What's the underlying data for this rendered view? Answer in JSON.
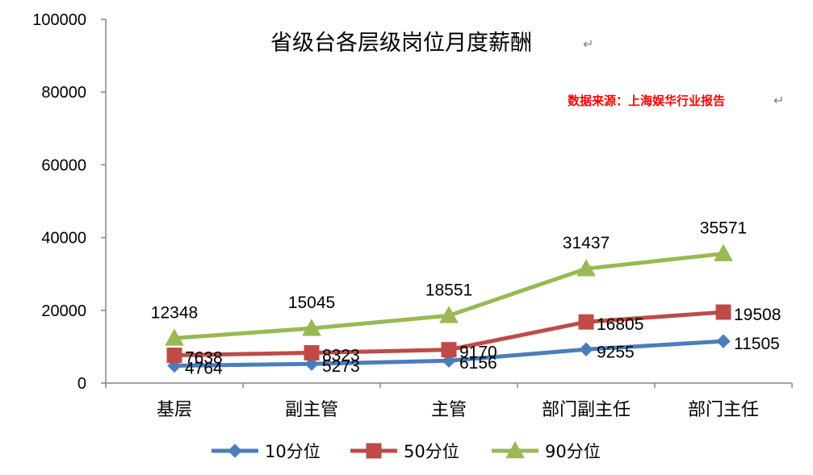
{
  "chart_data": {
    "type": "line",
    "title": "省级台各层级岗位月度薪酬",
    "source_note": "数据来源：上海娱华行业报告",
    "categories": [
      "基层",
      "副主管",
      "主管",
      "部门副主任",
      "部门主任"
    ],
    "series": [
      {
        "name": "10分位",
        "values": [
          4764,
          5273,
          6156,
          9255,
          11505
        ],
        "color": "#4a7ebb",
        "marker": "diamond"
      },
      {
        "name": "50分位",
        "values": [
          7638,
          8323,
          9170,
          16805,
          19508
        ],
        "color": "#be4b48",
        "marker": "square"
      },
      {
        "name": "90分位",
        "values": [
          12348,
          15045,
          18551,
          31437,
          35571
        ],
        "color": "#98b954",
        "marker": "triangle"
      }
    ],
    "ylim": [
      0,
      100000
    ],
    "yticks": [
      "0",
      "20000",
      "40000",
      "60000",
      "80000",
      "100000"
    ],
    "grid": false,
    "legend_position": "bottom"
  }
}
